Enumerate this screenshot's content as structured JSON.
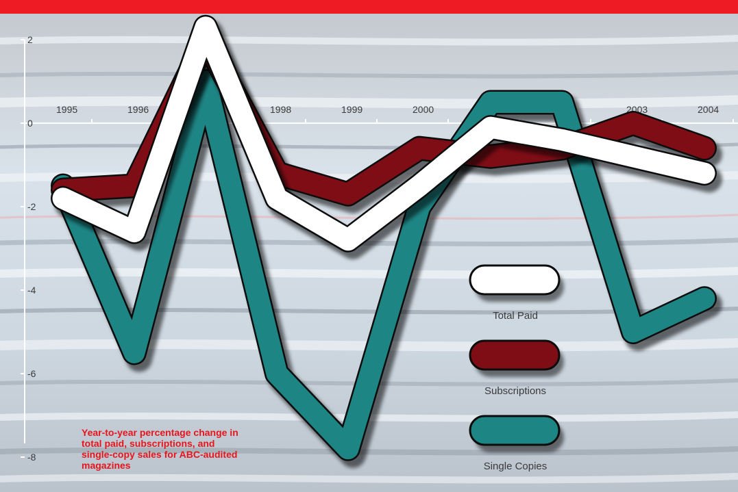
{
  "chart_data": {
    "type": "line",
    "title": "",
    "xlabel": "",
    "ylabel": "",
    "x": [
      "1995",
      "1996",
      "1997",
      "1998",
      "1999",
      "2000",
      "2001",
      "2002",
      "2003",
      "2004"
    ],
    "x_tick_labels": [
      "1995",
      "1996",
      "",
      "1998",
      "1999",
      "2000",
      "",
      "",
      "2003",
      "2004"
    ],
    "y_ticks": [
      2,
      0,
      -2,
      -4,
      -6,
      -8
    ],
    "y_tick_labels": [
      "2",
      "0",
      "-2",
      "-4",
      "-6",
      "-8"
    ],
    "ylim": [
      -8,
      2.5
    ],
    "grid": false,
    "legend_position": "right",
    "series": [
      {
        "name": "Single Copies",
        "color": "#1e8585",
        "values": [
          -1.5,
          -5.5,
          1.0,
          -6.0,
          -7.8,
          -2.0,
          0.5,
          0.5,
          -5.0,
          -4.2
        ]
      },
      {
        "name": "Subscriptions",
        "color": "#7f0d16",
        "values": [
          -1.6,
          -1.5,
          2.0,
          -1.2,
          -1.7,
          -0.6,
          -0.8,
          -0.6,
          0.0,
          -0.6
        ]
      },
      {
        "name": "Total Paid",
        "color": "#ffffff",
        "values": [
          -1.8,
          -2.6,
          2.3,
          -1.8,
          -2.8,
          -1.5,
          -0.1,
          -0.4,
          -0.8,
          -1.2
        ]
      }
    ],
    "annotation": "Year-to-year percentage change in total paid, subscriptions, and single-copy sales for ABC-audited magazines"
  }
}
